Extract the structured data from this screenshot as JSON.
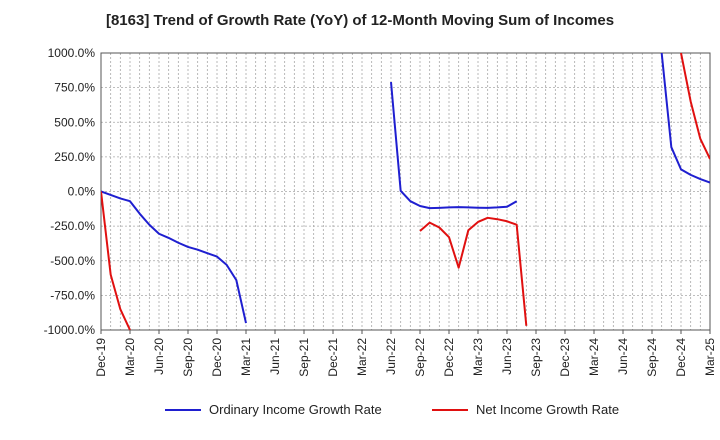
{
  "chart_data": {
    "type": "line",
    "title": "[8163]  Trend of Growth Rate (YoY) of 12-Month Moving Sum of Incomes",
    "xlabel": "",
    "ylabel": "",
    "ylim": [
      -1000,
      1000
    ],
    "y_ticks": [
      "1000.0%",
      "750.0%",
      "500.0%",
      "250.0%",
      "0.0%",
      "-250.0%",
      "-500.0%",
      "-750.0%",
      "-1000.0%"
    ],
    "x_ticks": [
      "Dec-19",
      "Mar-20",
      "Jun-20",
      "Sep-20",
      "Dec-20",
      "Mar-21",
      "Jun-21",
      "Sep-21",
      "Dec-21",
      "Mar-22",
      "Jun-22",
      "Sep-22",
      "Dec-22",
      "Mar-23",
      "Jun-23",
      "Sep-23",
      "Dec-23",
      "Mar-24",
      "Jun-24",
      "Sep-24",
      "Dec-24",
      "Mar-25"
    ],
    "grid": true,
    "legend_position": "bottom",
    "series": [
      {
        "name": "Ordinary Income Growth Rate",
        "color": "#1f1fd0",
        "points": [
          [
            0,
            0
          ],
          [
            1,
            -25
          ],
          [
            2,
            -50
          ],
          [
            3,
            -70
          ],
          [
            4,
            -160
          ],
          [
            5,
            -240
          ],
          [
            6,
            -305
          ],
          [
            7,
            -335
          ],
          [
            8,
            -370
          ],
          [
            9,
            -400
          ],
          [
            10,
            -420
          ],
          [
            11,
            -445
          ],
          [
            12,
            -470
          ],
          [
            13,
            -530
          ],
          [
            14,
            -640
          ],
          [
            15,
            -950
          ],
          null,
          [
            30,
            790
          ],
          [
            31,
            5
          ],
          [
            32,
            -70
          ],
          [
            33,
            -105
          ],
          [
            34,
            -120
          ],
          [
            35,
            -118
          ],
          [
            36,
            -115
          ],
          [
            37,
            -113
          ],
          [
            38,
            -115
          ],
          [
            39,
            -117
          ],
          [
            40,
            -118
          ],
          [
            41,
            -115
          ],
          [
            42,
            -110
          ],
          [
            43,
            -70
          ],
          null,
          [
            58,
            1000
          ],
          [
            59,
            320
          ],
          [
            60,
            160
          ],
          [
            61,
            120
          ],
          [
            62,
            90
          ],
          [
            63,
            65
          ]
        ]
      },
      {
        "name": "Net Income Growth Rate",
        "color": "#e01010",
        "points": [
          [
            0,
            0
          ],
          [
            1,
            -600
          ],
          [
            2,
            -850
          ],
          [
            3,
            -1000
          ],
          null,
          [
            33,
            -285
          ],
          [
            34,
            -225
          ],
          [
            35,
            -260
          ],
          [
            36,
            -330
          ],
          [
            37,
            -550
          ],
          [
            38,
            -280
          ],
          [
            39,
            -220
          ],
          [
            40,
            -190
          ],
          [
            41,
            -200
          ],
          [
            42,
            -215
          ],
          [
            43,
            -240
          ],
          [
            44,
            -970
          ],
          null,
          [
            60,
            1000
          ],
          [
            61,
            650
          ],
          [
            62,
            380
          ],
          [
            63,
            235
          ]
        ]
      }
    ]
  },
  "legend": {
    "items": [
      {
        "label": "Ordinary Income Growth Rate",
        "color": "#1f1fd0"
      },
      {
        "label": "Net Income Growth Rate",
        "color": "#e01010"
      }
    ]
  }
}
